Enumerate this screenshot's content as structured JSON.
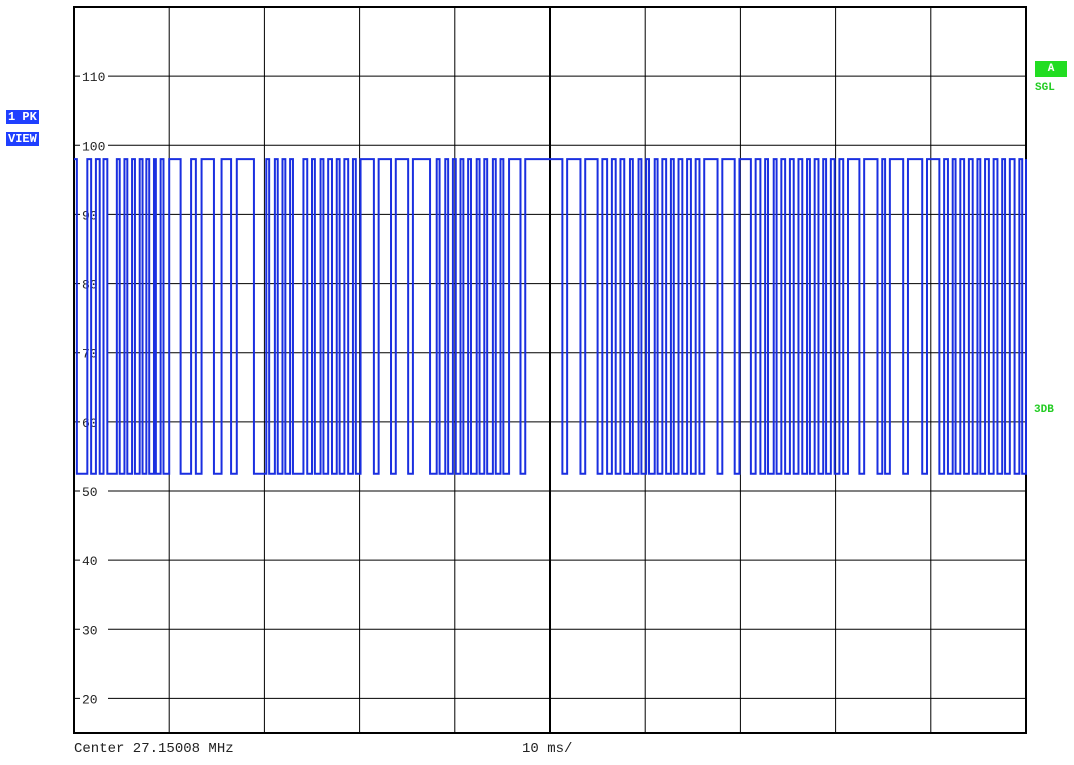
{
  "chart_data": {
    "type": "line",
    "title": "",
    "xlabel": "",
    "ylabel": "",
    "x_unit": "ms",
    "xlim": [
      0,
      100
    ],
    "ylim": [
      15,
      120
    ],
    "y_ticks": [
      20,
      30,
      40,
      50,
      60,
      70,
      80,
      90,
      100,
      110
    ],
    "grid": true,
    "series": [
      {
        "color": "#1a2fe0",
        "high_level": 98,
        "low_level": 52.5,
        "low_pulses_ms": [
          [
            0.3,
            1.4
          ],
          [
            1.8,
            2.3
          ],
          [
            2.7,
            3.1
          ],
          [
            3.5,
            4.5
          ],
          [
            4.8,
            5.3
          ],
          [
            5.6,
            6.1
          ],
          [
            6.4,
            6.9
          ],
          [
            7.2,
            7.6
          ],
          [
            7.9,
            8.4
          ],
          [
            8.6,
            9.1
          ],
          [
            9.4,
            10.0
          ],
          [
            11.2,
            12.3
          ],
          [
            12.8,
            13.4
          ],
          [
            14.7,
            15.5
          ],
          [
            16.5,
            17.1
          ],
          [
            18.9,
            20.2
          ],
          [
            20.5,
            21.1
          ],
          [
            21.4,
            21.9
          ],
          [
            22.2,
            22.7
          ],
          [
            23.0,
            24.1
          ],
          [
            24.5,
            25.0
          ],
          [
            25.3,
            25.9
          ],
          [
            26.2,
            26.7
          ],
          [
            27.1,
            27.6
          ],
          [
            27.9,
            28.4
          ],
          [
            28.8,
            29.3
          ],
          [
            29.6,
            30.1
          ],
          [
            31.5,
            32.0
          ],
          [
            33.3,
            33.8
          ],
          [
            35.1,
            35.6
          ],
          [
            37.4,
            38.1
          ],
          [
            38.4,
            39.0
          ],
          [
            39.3,
            39.8
          ],
          [
            40.1,
            40.6
          ],
          [
            40.9,
            41.4
          ],
          [
            41.7,
            42.3
          ],
          [
            42.6,
            43.1
          ],
          [
            43.4,
            44.0
          ],
          [
            44.3,
            44.8
          ],
          [
            45.1,
            45.7
          ],
          [
            46.9,
            47.4
          ],
          [
            51.3,
            51.8
          ],
          [
            53.2,
            53.7
          ],
          [
            55.0,
            55.5
          ],
          [
            56.0,
            56.5
          ],
          [
            56.9,
            57.4
          ],
          [
            57.8,
            58.4
          ],
          [
            58.7,
            59.3
          ],
          [
            59.6,
            60.1
          ],
          [
            60.4,
            61.0
          ],
          [
            61.3,
            61.8
          ],
          [
            62.2,
            62.7
          ],
          [
            63.0,
            63.5
          ],
          [
            63.9,
            64.4
          ],
          [
            64.8,
            65.3
          ],
          [
            65.7,
            66.2
          ],
          [
            67.6,
            68.1
          ],
          [
            69.4,
            69.9
          ],
          [
            71.1,
            71.6
          ],
          [
            72.1,
            72.6
          ],
          [
            72.9,
            73.5
          ],
          [
            73.8,
            74.3
          ],
          [
            74.7,
            75.2
          ],
          [
            75.6,
            76.1
          ],
          [
            76.5,
            77.0
          ],
          [
            77.3,
            77.8
          ],
          [
            78.2,
            78.7
          ],
          [
            79.0,
            79.5
          ],
          [
            79.9,
            80.4
          ],
          [
            80.8,
            81.3
          ],
          [
            82.5,
            83.0
          ],
          [
            84.4,
            84.9
          ],
          [
            85.2,
            85.7
          ],
          [
            87.1,
            87.6
          ],
          [
            89.1,
            89.6
          ],
          [
            90.9,
            91.4
          ],
          [
            91.8,
            92.3
          ],
          [
            92.6,
            93.1
          ],
          [
            93.5,
            94.0
          ],
          [
            94.4,
            94.9
          ],
          [
            95.2,
            95.7
          ],
          [
            96.1,
            96.6
          ],
          [
            97.0,
            97.5
          ],
          [
            97.8,
            98.3
          ],
          [
            98.8,
            99.3
          ],
          [
            99.6,
            100.0
          ]
        ]
      }
    ]
  },
  "labels": {
    "trace_badge_line1": "1 PK",
    "trace_badge_line2": "VIEW",
    "sweep_badge": "A",
    "sweep_mode": "SGL",
    "side_marker": "3DB",
    "footer_center": "Center 27.15008 MHz",
    "footer_span": "10 ms/"
  }
}
